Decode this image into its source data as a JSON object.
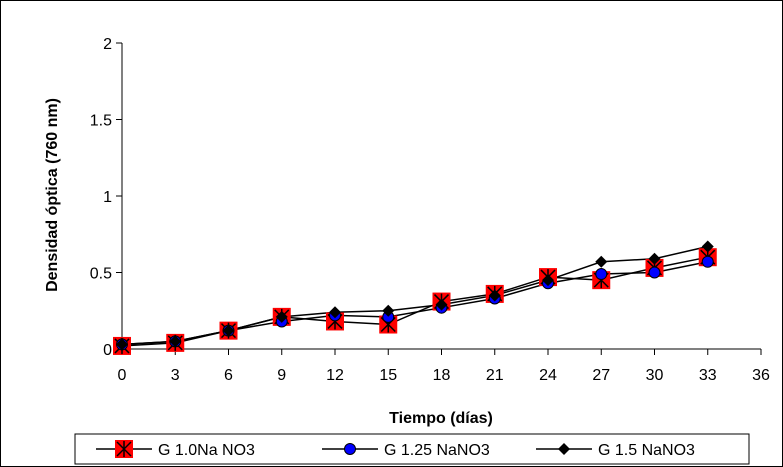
{
  "chart_data": {
    "type": "line",
    "title": "",
    "xlabel": "Tiempo (días)",
    "ylabel": "Densidad óptica (760 nm)",
    "x": [
      0,
      3,
      6,
      9,
      12,
      15,
      18,
      21,
      24,
      27,
      30,
      33
    ],
    "xlim": [
      0,
      36
    ],
    "ylim": [
      0,
      2
    ],
    "xticks": [
      "0",
      "3",
      "6",
      "9",
      "12",
      "15",
      "18",
      "21",
      "24",
      "27",
      "30",
      "33",
      "36"
    ],
    "yticks": [
      "0",
      "0.5",
      "1",
      "1.5",
      "2"
    ],
    "grid": false,
    "legend_position": "bottom",
    "series": [
      {
        "name": "G 1.0Na NO3",
        "marker": "red-square-star",
        "color": "#ff0000",
        "values": [
          0.02,
          0.04,
          0.12,
          0.21,
          0.18,
          0.16,
          0.31,
          0.36,
          0.47,
          0.45,
          0.53,
          0.6
        ]
      },
      {
        "name": "G 1.25 NaNO3",
        "marker": "blue-circle",
        "color": "#0000ff",
        "values": [
          0.03,
          0.05,
          0.12,
          0.18,
          0.22,
          0.21,
          0.27,
          0.33,
          0.43,
          0.49,
          0.5,
          0.57
        ]
      },
      {
        "name": "G 1.5 NaNO3",
        "marker": "black-diamond",
        "color": "#000000",
        "values": [
          0.03,
          0.05,
          0.12,
          0.21,
          0.24,
          0.25,
          0.29,
          0.35,
          0.45,
          0.57,
          0.59,
          0.67
        ]
      }
    ]
  }
}
